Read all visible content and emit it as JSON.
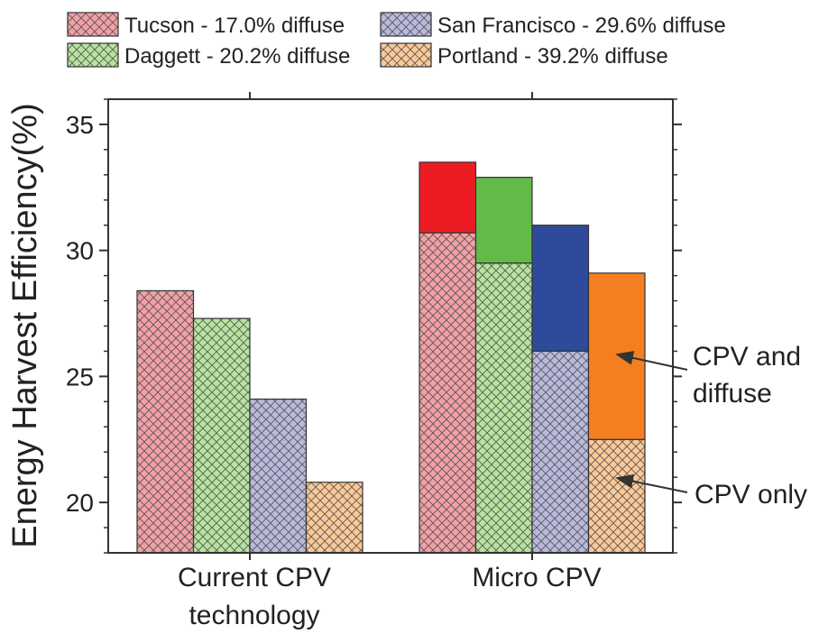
{
  "chart_data": {
    "type": "bar",
    "ylabel": "Energy Harvest Efficiency(%)",
    "xlabel": "",
    "ylim": [
      18,
      36
    ],
    "yticks": [
      20,
      25,
      30,
      35
    ],
    "categories": [
      {
        "lines": [
          "Current CPV",
          "technology"
        ]
      },
      {
        "lines": [
          "Micro CPV"
        ]
      }
    ],
    "series": [
      {
        "name": "Tucson - 17.0% diffuse",
        "hatch_color": "#f2a0a6",
        "solid_color": "#ed1c24",
        "cpv_only": [
          28.4,
          30.7
        ],
        "cpv_and_diffuse": [
          null,
          33.5
        ]
      },
      {
        "name": "Daggett - 20.2% diffuse",
        "hatch_color": "#b7e39e",
        "solid_color": "#62bb46",
        "cpv_only": [
          27.3,
          29.5
        ],
        "cpv_and_diffuse": [
          null,
          32.9
        ]
      },
      {
        "name": "San Francisco - 29.6% diffuse",
        "hatch_color": "#b9b9dd",
        "solid_color": "#2e4b9b",
        "cpv_only": [
          24.1,
          26.0
        ],
        "cpv_and_diffuse": [
          null,
          31.0
        ]
      },
      {
        "name": "Portland - 39.2% diffuse",
        "hatch_color": "#fbc896",
        "solid_color": "#f47f20",
        "cpv_only": [
          20.8,
          22.5
        ],
        "cpv_and_diffuse": [
          null,
          29.1
        ]
      }
    ],
    "annotations": [
      {
        "lines": [
          "CPV and",
          "diffuse"
        ],
        "points_to": "cpv_and_diffuse"
      },
      {
        "lines": [
          "CPV only"
        ],
        "points_to": "cpv_only"
      }
    ],
    "legend_placement": "top"
  }
}
